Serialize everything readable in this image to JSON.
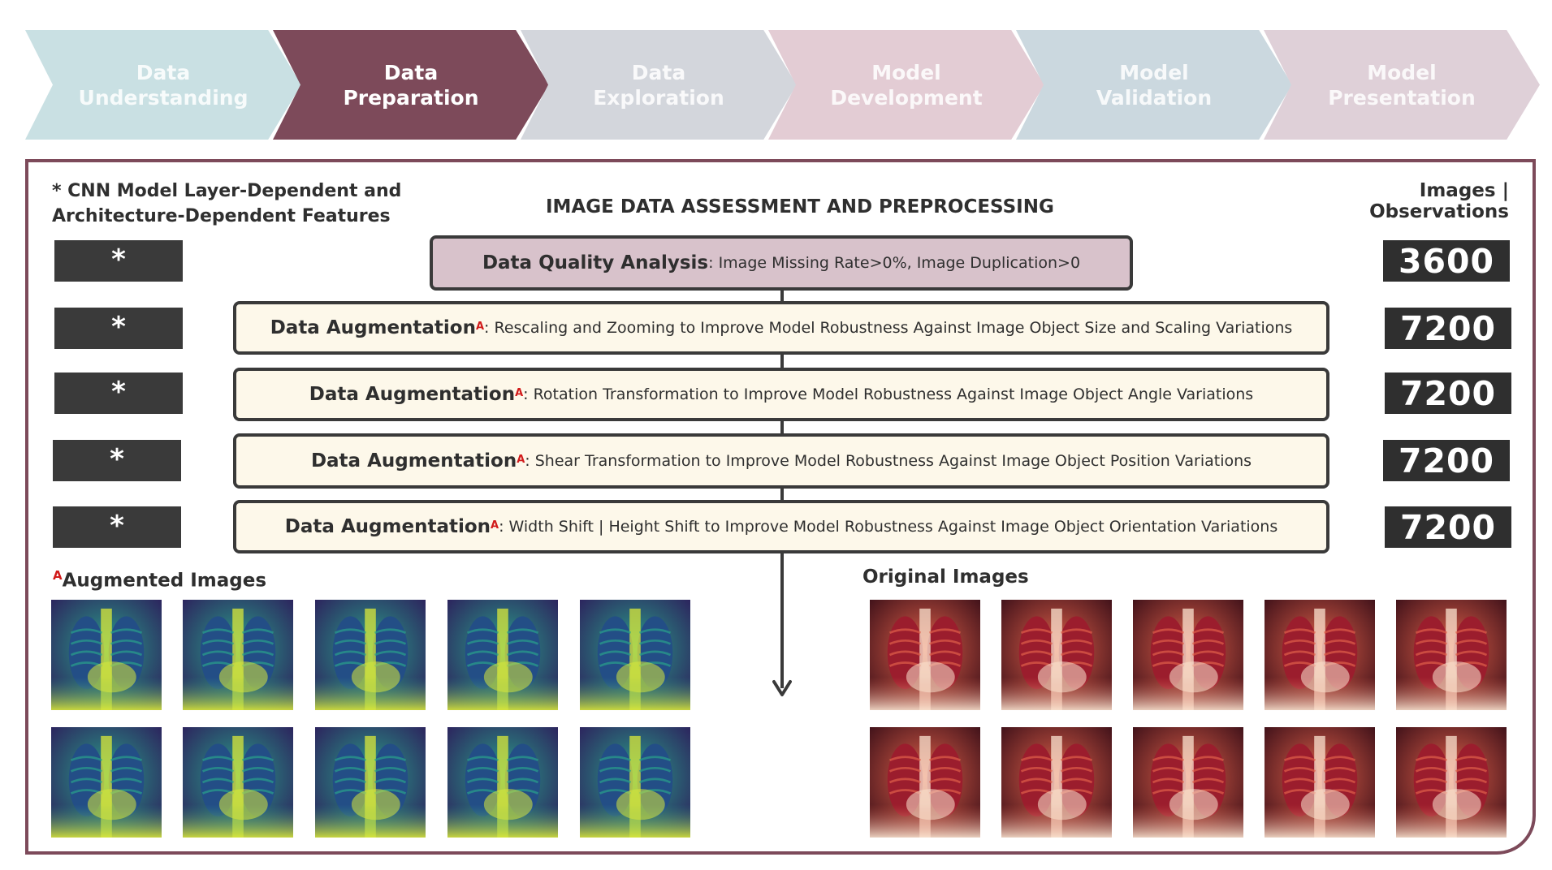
{
  "process_steps": [
    {
      "label": "Data\nUnderstanding",
      "color": "#c9e0e3",
      "active": false
    },
    {
      "label": "Data\nPreparation",
      "color": "#7d4a5a",
      "active": true
    },
    {
      "label": "Data\nExploration",
      "color": "#d3d6dc",
      "active": false
    },
    {
      "label": "Model\nDevelopment",
      "color": "#e3ccd4",
      "active": false
    },
    {
      "label": "Model\nValidation",
      "color": "#cbd8df",
      "active": false
    },
    {
      "label": "Model\nPresentation",
      "color": "#dfd0d8",
      "active": false
    }
  ],
  "panel": {
    "cnn_note": "* CNN Model Layer-Dependent and\n   Architecture-Dependent Features",
    "title": "IMAGE DATA ASSESSMENT AND PREPROCESSING",
    "observations_header": "Images | Observations",
    "star": "*"
  },
  "steps": [
    {
      "lead": "Data Quality Analysis",
      "sup": "",
      "desc": ": Image Missing Rate>0%, Image Duplication>0",
      "count": "3600"
    },
    {
      "lead": "Data Augmentation",
      "sup": "A",
      "desc": ": Rescaling and Zooming to Improve Model Robustness Against Image Object Size and Scaling Variations",
      "count": "7200"
    },
    {
      "lead": "Data Augmentation",
      "sup": "A",
      "desc": ": Rotation Transformation to Improve Model Robustness Against Image Object Angle Variations",
      "count": "7200"
    },
    {
      "lead": "Data Augmentation",
      "sup": "A",
      "desc": ": Shear Transformation to Improve Model Robustness Against Image Object Position Variations",
      "count": "7200"
    },
    {
      "lead": "Data Augmentation",
      "sup": "A",
      "desc": ": Width Shift | Height Shift to Improve Model Robustness Against Image Object Orientation Variations",
      "count": "7200"
    }
  ],
  "augmented": {
    "sup": "A",
    "label": "Augmented Images"
  },
  "original": {
    "label": "Original Images"
  },
  "colors": {
    "frame": "#7d4a5a",
    "quality_fill": "#d8c2cb",
    "augment_fill": "#fdf8ea",
    "dark_box": "#2f2f2f",
    "superscript": "#d11a1a"
  }
}
